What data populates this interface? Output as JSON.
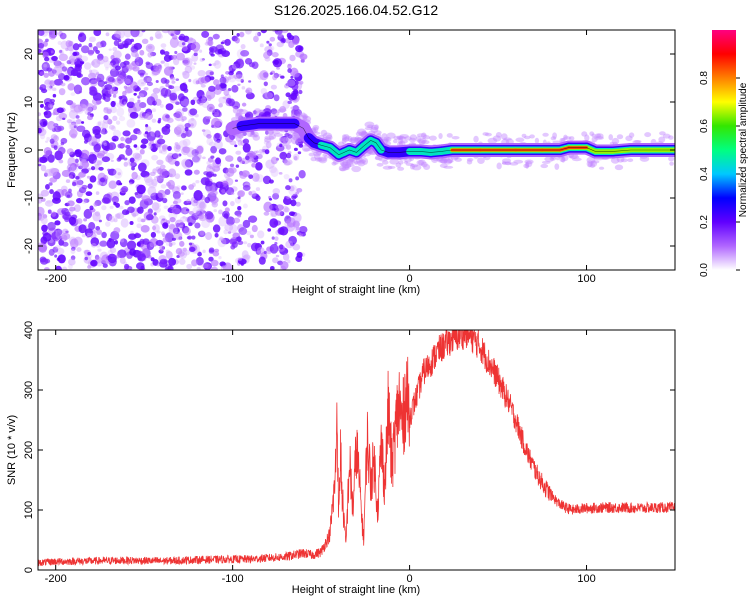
{
  "figure_title": "S126.2025.166.04.52.G12",
  "chart_data": [
    {
      "type": "heatmap",
      "title": "S126.2025.166.04.52.G12",
      "xlabel": "Height of straight line (km)",
      "ylabel": "Frequency (Hz)",
      "xlim": [
        -210,
        150
      ],
      "ylim": [
        -25,
        25
      ],
      "x_ticks": [
        -200,
        -100,
        0,
        100
      ],
      "x_tick_labels": [
        "-200",
        "-100",
        "0",
        "100"
      ],
      "y_ticks": [
        -20,
        -10,
        0,
        10,
        20
      ],
      "y_tick_labels": [
        "-20",
        "-10",
        "0",
        "10",
        "20"
      ],
      "noise_region_x": [
        -210,
        -60
      ],
      "noise_region_lower_edge_x": -105,
      "ridge": {
        "x": [
          -100,
          -95,
          -85,
          -75,
          -65,
          -60,
          -57,
          -54,
          -50,
          -45,
          -40,
          -37,
          -34,
          -30,
          -26,
          -22,
          -19,
          -16,
          -12,
          -6,
          0,
          6,
          12,
          18,
          24,
          40,
          60,
          75,
          85,
          90,
          100,
          105,
          115,
          125,
          135,
          150
        ],
        "frequency": [
          4.5,
          5.0,
          5.5,
          5.5,
          5.5,
          4.5,
          2.5,
          1.5,
          1.0,
          0.5,
          -1.0,
          -0.5,
          0.0,
          -0.5,
          0.8,
          2.0,
          1.5,
          0.0,
          -0.5,
          -0.5,
          -0.3,
          -0.3,
          -0.5,
          -0.3,
          0.0,
          0.0,
          0.0,
          0.0,
          0.0,
          0.5,
          0.5,
          -0.3,
          -0.3,
          0.0,
          0.0,
          0.0
        ],
        "amplitude": [
          0.2,
          0.25,
          0.3,
          0.35,
          0.25,
          0.2,
          0.35,
          0.4,
          0.45,
          0.45,
          0.55,
          0.5,
          0.45,
          0.45,
          0.5,
          0.6,
          0.5,
          0.45,
          0.35,
          0.4,
          0.45,
          0.5,
          0.55,
          0.6,
          0.9,
          1.0,
          1.0,
          1.0,
          0.85,
          1.0,
          1.0,
          0.8,
          0.7,
          0.7,
          0.75,
          0.7
        ]
      },
      "colorbar": {
        "label": "Normalized spectral amplitude",
        "range": [
          0,
          1
        ],
        "ticks": [
          0.0,
          0.2,
          0.4,
          0.6,
          0.8
        ],
        "tick_labels": [
          "0.0",
          "0.2",
          "0.4",
          "0.6",
          "0.8"
        ],
        "colors": [
          "#ffffff",
          "#b066ff",
          "#6000ff",
          "#0000ff",
          "#00c8ff",
          "#00ff80",
          "#33e600",
          "#ffff00",
          "#ff8000",
          "#ff0000",
          "#ff0080"
        ]
      },
      "grid": false
    },
    {
      "type": "line",
      "xlabel": "Height of straight line (km)",
      "ylabel": "SNR (10 * v/v)",
      "xlim": [
        -210,
        150
      ],
      "ylim": [
        0,
        400
      ],
      "x_ticks": [
        -200,
        -100,
        0,
        100
      ],
      "x_tick_labels": [
        "-200",
        "-100",
        "0",
        "100"
      ],
      "y_ticks": [
        0,
        100,
        200,
        300,
        400
      ],
      "y_tick_labels": [
        "0",
        "100",
        "200",
        "300",
        "400"
      ],
      "line_color": "#ee3333",
      "grid": false,
      "series": [
        {
          "x": [
            -210,
            -200,
            -180,
            -160,
            -140,
            -120,
            -100,
            -90,
            -80,
            -70,
            -65,
            -60,
            -55,
            -50,
            -45,
            -42,
            -41,
            -40,
            -39,
            -38,
            -36,
            -34,
            -32,
            -30,
            -28,
            -26,
            -24,
            -22,
            -20,
            -18,
            -16,
            -14,
            -12,
            -10,
            -8,
            -6,
            -4,
            -2,
            0,
            4,
            8,
            12,
            16,
            20,
            24,
            28,
            32,
            36,
            40,
            44,
            48,
            52,
            56,
            60,
            64,
            68,
            72,
            76,
            80,
            84,
            88,
            92,
            96,
            100,
            110,
            120,
            130,
            140,
            150
          ],
          "y": [
            12,
            14,
            15,
            16,
            15,
            17,
            18,
            18,
            20,
            22,
            25,
            28,
            25,
            30,
            60,
            150,
            270,
            80,
            200,
            120,
            40,
            180,
            100,
            210,
            130,
            50,
            220,
            150,
            180,
            100,
            210,
            140,
            270,
            170,
            230,
            280,
            240,
            300,
            255,
            290,
            330,
            345,
            365,
            375,
            385,
            390,
            395,
            385,
            372,
            350,
            330,
            305,
            280,
            250,
            215,
            185,
            160,
            140,
            125,
            112,
            104,
            100,
            102,
            103,
            104,
            104,
            103,
            104,
            104
          ]
        }
      ]
    }
  ]
}
